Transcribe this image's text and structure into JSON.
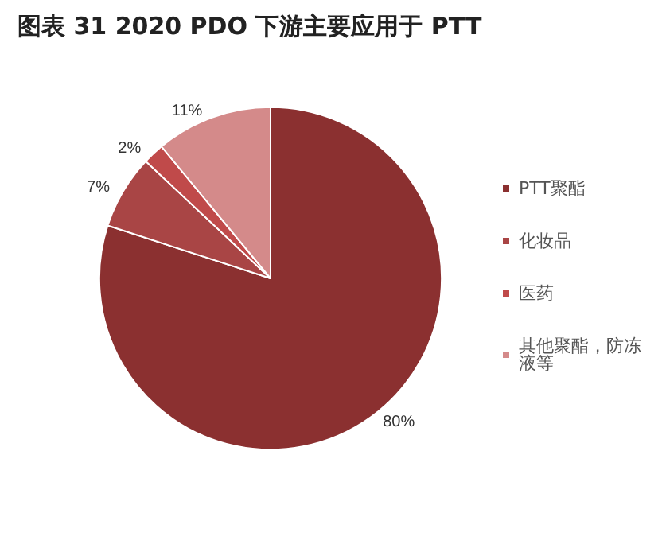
{
  "chart_data": {
    "type": "pie",
    "title": "图表 31 2020 PDO 下游主要应用于 PTT",
    "categories": [
      "PTT聚酯",
      "化妆品",
      "医药",
      "其他聚酯，防冻液等"
    ],
    "values": [
      80,
      7,
      2,
      11
    ],
    "colors": [
      "#8b3030",
      "#a94545",
      "#c04a4a",
      "#d48a8a"
    ],
    "legend": "right",
    "value_labels": [
      "80%",
      "7%",
      "2%",
      "11%"
    ]
  }
}
